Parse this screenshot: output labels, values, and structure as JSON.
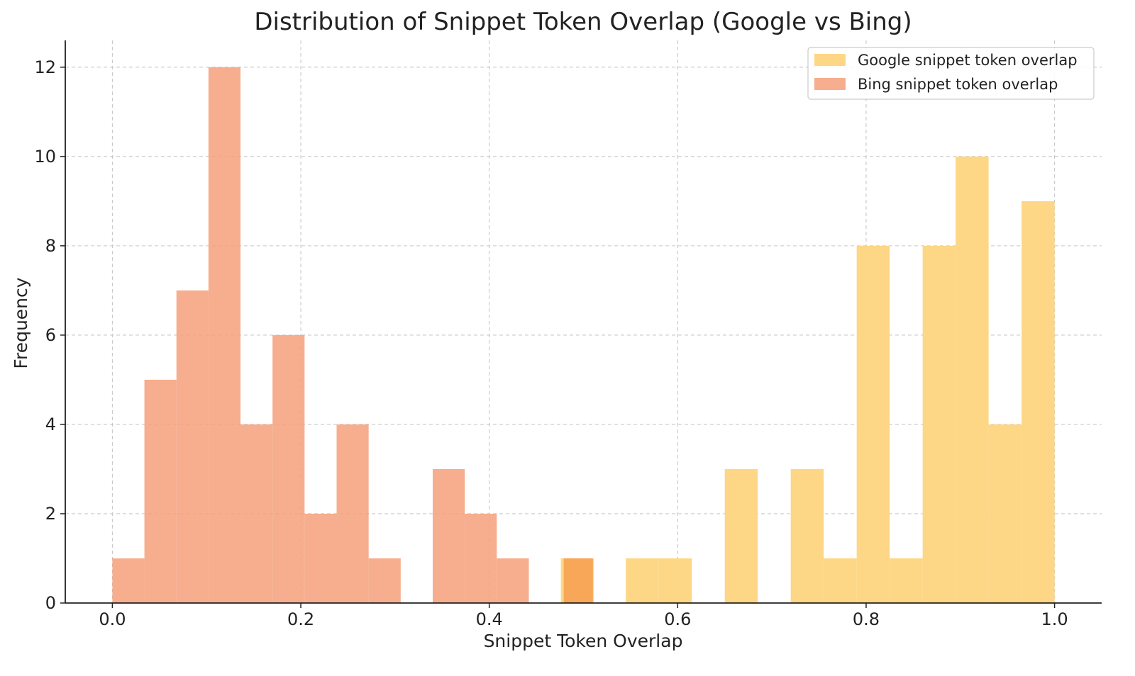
{
  "chart_data": {
    "type": "bar",
    "subtype": "overlaid-histogram",
    "title": "Distribution of Snippet Token Overlap (Google vs Bing)",
    "xlabel": "Snippet Token Overlap",
    "ylabel": "Frequency",
    "xlim": [
      -0.05,
      1.05
    ],
    "ylim": [
      0,
      12.6
    ],
    "xticks": [
      0.0,
      0.2,
      0.4,
      0.6,
      0.8,
      1.0
    ],
    "xtick_labels": [
      "0.0",
      "0.2",
      "0.4",
      "0.6",
      "0.8",
      "1.0"
    ],
    "yticks": [
      0,
      2,
      4,
      6,
      8,
      10,
      12
    ],
    "ytick_labels": [
      "0",
      "2",
      "4",
      "6",
      "8",
      "10",
      "12"
    ],
    "grid": true,
    "legend_position": "top-right",
    "series": [
      {
        "name": "Google snippet token overlap",
        "color": "#fdd580",
        "bins": [
          {
            "x0": 0.476,
            "x1": 0.511,
            "count": 1
          },
          {
            "x0": 0.545,
            "x1": 0.58,
            "count": 1
          },
          {
            "x0": 0.58,
            "x1": 0.615,
            "count": 1
          },
          {
            "x0": 0.65,
            "x1": 0.685,
            "count": 3
          },
          {
            "x0": 0.72,
            "x1": 0.755,
            "count": 3
          },
          {
            "x0": 0.755,
            "x1": 0.79,
            "count": 1
          },
          {
            "x0": 0.79,
            "x1": 0.825,
            "count": 8
          },
          {
            "x0": 0.825,
            "x1": 0.86,
            "count": 1
          },
          {
            "x0": 0.86,
            "x1": 0.895,
            "count": 8
          },
          {
            "x0": 0.895,
            "x1": 0.93,
            "count": 10
          },
          {
            "x0": 0.93,
            "x1": 0.965,
            "count": 4
          },
          {
            "x0": 0.965,
            "x1": 1.0,
            "count": 9
          }
        ]
      },
      {
        "name": "Bing snippet token overlap",
        "color": "#f5a07a",
        "bins": [
          {
            "x0": 0.0,
            "x1": 0.034,
            "count": 1
          },
          {
            "x0": 0.034,
            "x1": 0.068,
            "count": 5
          },
          {
            "x0": 0.068,
            "x1": 0.102,
            "count": 7
          },
          {
            "x0": 0.102,
            "x1": 0.136,
            "count": 12
          },
          {
            "x0": 0.136,
            "x1": 0.17,
            "count": 4
          },
          {
            "x0": 0.17,
            "x1": 0.204,
            "count": 6
          },
          {
            "x0": 0.204,
            "x1": 0.238,
            "count": 2
          },
          {
            "x0": 0.238,
            "x1": 0.272,
            "count": 4
          },
          {
            "x0": 0.272,
            "x1": 0.306,
            "count": 1
          },
          {
            "x0": 0.34,
            "x1": 0.374,
            "count": 3
          },
          {
            "x0": 0.374,
            "x1": 0.408,
            "count": 2
          },
          {
            "x0": 0.408,
            "x1": 0.442,
            "count": 1
          },
          {
            "x0": 0.479,
            "x1": 0.51,
            "count": 1
          }
        ]
      }
    ]
  }
}
